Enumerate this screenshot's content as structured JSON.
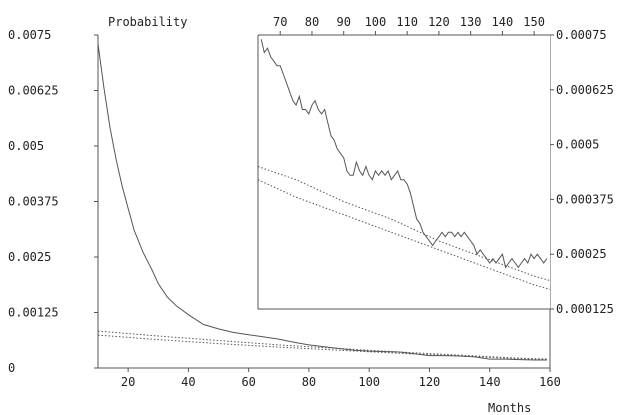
{
  "chart_data": [
    {
      "type": "line",
      "title": "",
      "ylabel": "Probability",
      "xlabel": "Months",
      "xlim": [
        10,
        160
      ],
      "ylim": [
        0,
        0.0075
      ],
      "xticks": [
        "20",
        "40",
        "60",
        "80",
        "100",
        "120",
        "140",
        "160"
      ],
      "yticks": [
        "0",
        "0.00125",
        "0.0025",
        "0.00375",
        "0.005",
        "0.00625",
        "0.0075"
      ],
      "grid": false,
      "series": [
        {
          "style": "solid",
          "x": [
            10,
            12,
            14,
            16,
            18,
            20,
            22,
            25,
            28,
            30,
            33,
            36,
            40,
            45,
            50,
            55,
            60,
            65,
            70,
            75,
            80,
            85,
            90,
            95,
            100,
            105,
            110,
            115,
            120,
            125,
            130,
            135,
            140,
            145,
            150,
            155,
            159
          ],
          "y": [
            0.0073,
            0.0063,
            0.0054,
            0.0047,
            0.0041,
            0.0036,
            0.0031,
            0.0026,
            0.0022,
            0.0019,
            0.0016,
            0.0014,
            0.0012,
            0.00098,
            0.00088,
            0.0008,
            0.00075,
            0.0007,
            0.00065,
            0.00058,
            0.00052,
            0.00048,
            0.00044,
            0.0004,
            0.00038,
            0.00037,
            0.00036,
            0.00032,
            0.00028,
            0.00028,
            0.00027,
            0.00025,
            0.0002,
            0.0002,
            0.00019,
            0.00018,
            0.00018
          ]
        },
        {
          "style": "dotted",
          "x": [
            10,
            30,
            50,
            70,
            90,
            110,
            130,
            150,
            159
          ],
          "y": [
            0.00083,
            0.00072,
            0.00062,
            0.00052,
            0.00044,
            0.00036,
            0.00029,
            0.00022,
            0.0002
          ]
        },
        {
          "style": "dotted",
          "x": [
            10,
            30,
            50,
            70,
            90,
            110,
            130,
            150,
            159
          ],
          "y": [
            0.00074,
            0.00064,
            0.00055,
            0.00047,
            0.0004,
            0.00033,
            0.00027,
            0.00021,
            0.00019
          ]
        }
      ]
    },
    {
      "type": "line",
      "title": "",
      "inset": true,
      "xlim": [
        63,
        155
      ],
      "ylim": [
        0.000125,
        0.00075
      ],
      "xticks": [
        "70",
        "80",
        "90",
        "100",
        "110",
        "120",
        "130",
        "140",
        "150"
      ],
      "yticks": [
        "0.000125",
        "0.00025",
        "0.000375",
        "0.0005",
        "0.000625",
        "0.00075"
      ],
      "grid": false,
      "series": [
        {
          "style": "solid",
          "x": [
            64,
            65,
            66,
            67,
            68,
            69,
            70,
            71,
            72,
            73,
            74,
            75,
            76,
            77,
            78,
            79,
            80,
            81,
            82,
            83,
            84,
            85,
            86,
            87,
            88,
            89,
            90,
            91,
            92,
            93,
            94,
            95,
            96,
            97,
            98,
            99,
            100,
            101,
            102,
            103,
            104,
            105,
            106,
            107,
            108,
            109,
            110,
            111,
            112,
            113,
            114,
            115,
            116,
            117,
            118,
            119,
            120,
            121,
            122,
            123,
            124,
            125,
            126,
            127,
            128,
            129,
            130,
            131,
            132,
            133,
            134,
            135,
            136,
            137,
            138,
            139,
            140,
            141,
            142,
            143,
            144,
            145,
            146,
            147,
            148,
            149,
            150,
            151,
            152,
            153,
            154
          ],
          "y": [
            0.00074,
            0.00071,
            0.00072,
            0.0007,
            0.00069,
            0.00068,
            0.00068,
            0.00066,
            0.00064,
            0.00062,
            0.0006,
            0.00059,
            0.00061,
            0.00058,
            0.00058,
            0.00057,
            0.00059,
            0.0006,
            0.00058,
            0.00057,
            0.00058,
            0.00055,
            0.00052,
            0.00051,
            0.00049,
            0.00048,
            0.00047,
            0.00044,
            0.00043,
            0.00043,
            0.00046,
            0.00044,
            0.00043,
            0.00045,
            0.00043,
            0.00042,
            0.00044,
            0.00043,
            0.00044,
            0.00043,
            0.00044,
            0.00042,
            0.00043,
            0.00044,
            0.00042,
            0.00042,
            0.00041,
            0.00039,
            0.00036,
            0.00033,
            0.00032,
            0.0003,
            0.00029,
            0.00028,
            0.00027,
            0.00028,
            0.00029,
            0.0003,
            0.00029,
            0.0003,
            0.0003,
            0.00029,
            0.0003,
            0.00029,
            0.0003,
            0.00029,
            0.00028,
            0.00027,
            0.00025,
            0.00026,
            0.00025,
            0.00024,
            0.00023,
            0.00024,
            0.00023,
            0.00024,
            0.00025,
            0.00022,
            0.00023,
            0.00024,
            0.00023,
            0.00022,
            0.00023,
            0.00024,
            0.00023,
            0.00025,
            0.00024,
            0.00025,
            0.00024,
            0.00023,
            0.00024
          ]
        },
        {
          "style": "dotted",
          "x": [
            63,
            75,
            90,
            105,
            120,
            135,
            150,
            155
          ],
          "y": [
            0.00045,
            0.00042,
            0.00037,
            0.00033,
            0.00028,
            0.00024,
            0.0002,
            0.00019
          ]
        },
        {
          "style": "dotted",
          "x": [
            63,
            75,
            90,
            105,
            120,
            135,
            150,
            155
          ],
          "y": [
            0.00042,
            0.00038,
            0.00034,
            0.0003,
            0.00026,
            0.00022,
            0.00018,
            0.00017
          ]
        }
      ]
    }
  ]
}
